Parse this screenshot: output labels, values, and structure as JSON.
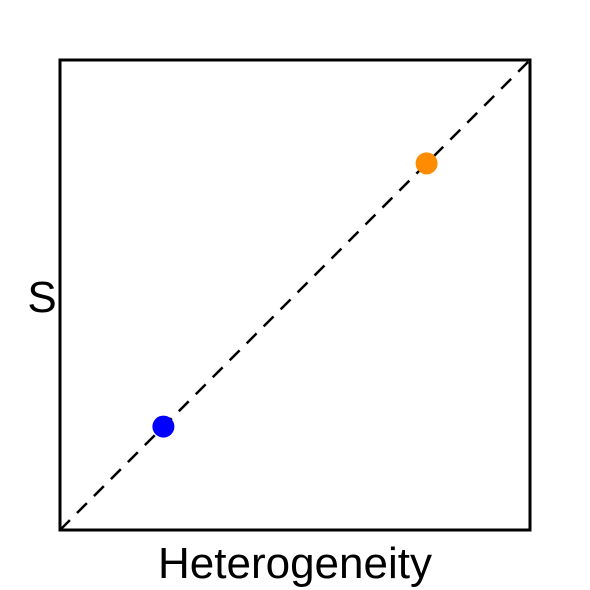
{
  "chart_data": {
    "type": "scatter",
    "xlabel": "Heterogeneity",
    "ylabel": "S",
    "xlim": [
      0,
      1
    ],
    "ylim": [
      0,
      1
    ],
    "grid": false,
    "points": [
      {
        "x": 0.22,
        "y": 0.22,
        "color": "#0000ff"
      },
      {
        "x": 0.78,
        "y": 0.78,
        "color": "#ff8c00"
      }
    ],
    "reference_line": {
      "from": [
        0,
        0
      ],
      "to": [
        1,
        1
      ],
      "style": "dashed",
      "color": "#000000"
    }
  }
}
